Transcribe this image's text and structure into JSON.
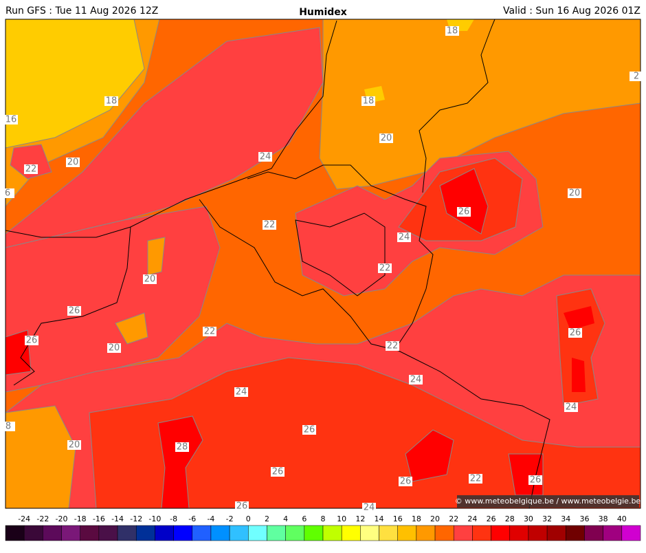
{
  "header": {
    "run": "Run GFS : Tue 11 Aug 2026 12Z",
    "title": "Humidex",
    "valid": "Valid : Sun 16 Aug 2026 01Z"
  },
  "contour_labels": [
    18,
    18,
    16,
    18,
    20,
    24,
    20,
    22,
    6,
    2,
    20,
    26,
    22,
    24,
    22,
    20,
    26,
    26,
    22,
    26,
    20,
    22,
    24,
    24,
    24,
    26,
    20,
    28,
    26,
    26,
    22,
    26,
    26,
    24,
    8
  ],
  "colorbar": {
    "ticks": [
      -24,
      -22,
      -20,
      -18,
      -16,
      -14,
      -12,
      -10,
      -8,
      -6,
      -4,
      -2,
      0,
      2,
      4,
      6,
      8,
      10,
      12,
      14,
      16,
      18,
      20,
      22,
      24,
      26,
      28,
      30,
      32,
      34,
      36,
      38,
      40
    ],
    "colors": [
      "#1a0018",
      "#3a0838",
      "#5c0a5a",
      "#7a1878",
      "#5a0a40",
      "#4a1048",
      "#303068",
      "#003098",
      "#0000c8",
      "#0000ff",
      "#2060ff",
      "#0090ff",
      "#30c0ff",
      "#70ffff",
      "#60ffa0",
      "#60ff60",
      "#60ff00",
      "#c0ff00",
      "#ffff00",
      "#ffff80",
      "#ffe040",
      "#ffc000",
      "#ff9900",
      "#ff6600",
      "#ff4040",
      "#ff3311",
      "#ff0000",
      "#e00000",
      "#c00000",
      "#a00000",
      "#700000",
      "#800050",
      "#a00080",
      "#d000d0"
    ]
  },
  "copyright": "© www.meteobelgique.be / www.meteobelgie.be"
}
